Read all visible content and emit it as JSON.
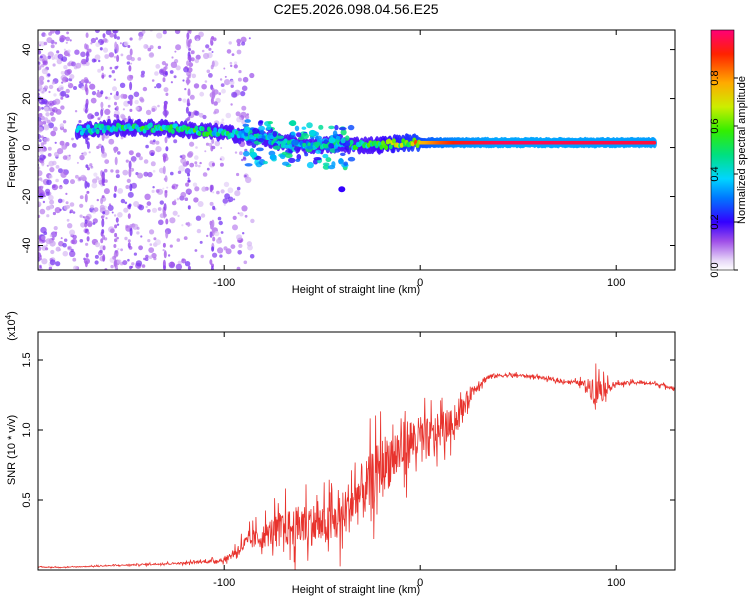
{
  "title": "C2E5.2026.098.04.56.E25",
  "chart_data": [
    {
      "type": "heatmap",
      "xlabel": "Height of straight line (km)",
      "ylabel": "Frequency (Hz)",
      "xlim": [
        -195,
        130
      ],
      "ylim": [
        -50,
        48
      ],
      "x_ticks": [
        -100,
        0,
        100
      ],
      "y_ticks": [
        -40,
        -20,
        0,
        20,
        40
      ],
      "colorbar": {
        "label": "Normalized spectral amplitude",
        "range": [
          0,
          1
        ],
        "ticks": [
          0.0,
          0.2,
          0.4,
          0.6,
          0.8
        ]
      },
      "track": [
        {
          "x": -175,
          "y": 7,
          "a": 0.35
        },
        {
          "x": -160,
          "y": 8,
          "a": 0.45
        },
        {
          "x": -145,
          "y": 8,
          "a": 0.5
        },
        {
          "x": -130,
          "y": 8,
          "a": 0.5
        },
        {
          "x": -115,
          "y": 7,
          "a": 0.5
        },
        {
          "x": -100,
          "y": 6,
          "a": 0.45
        },
        {
          "x": -90,
          "y": 5,
          "a": 0.45
        },
        {
          "x": -80,
          "y": 4,
          "a": 0.4
        },
        {
          "x": -70,
          "y": 2,
          "a": 0.4
        },
        {
          "x": -60,
          "y": 1,
          "a": 0.4
        },
        {
          "x": -50,
          "y": 1,
          "a": 0.45
        },
        {
          "x": -40,
          "y": 1,
          "a": 0.45
        },
        {
          "x": -30,
          "y": 1,
          "a": 0.5
        },
        {
          "x": -20,
          "y": 1,
          "a": 0.55
        },
        {
          "x": -10,
          "y": 2,
          "a": 0.65
        },
        {
          "x": 0,
          "y": 2,
          "a": 0.75
        },
        {
          "x": 10,
          "y": 2,
          "a": 0.85
        },
        {
          "x": 20,
          "y": 2,
          "a": 0.92
        },
        {
          "x": 40,
          "y": 2,
          "a": 0.97
        },
        {
          "x": 60,
          "y": 2,
          "a": 0.97
        },
        {
          "x": 80,
          "y": 2,
          "a": 0.96
        },
        {
          "x": 100,
          "y": 2,
          "a": 0.96
        },
        {
          "x": 120,
          "y": 2,
          "a": 0.95
        }
      ],
      "branch": [
        {
          "x": -85,
          "y": -3,
          "a": 0.4
        },
        {
          "x": -75,
          "y": -4,
          "a": 0.35
        },
        {
          "x": -65,
          "y": 10,
          "a": 0.45
        },
        {
          "x": -55,
          "y": 6,
          "a": 0.4
        },
        {
          "x": -45,
          "y": 3,
          "a": 0.4
        },
        {
          "x": -40,
          "y": -17,
          "a": 0.2
        }
      ]
    },
    {
      "type": "line",
      "xlabel": "Height of straight line (km)",
      "ylabel": "SNR (10 * v/v)",
      "scale_label": "(x10",
      "scale_exp": "4",
      "scale_close": ")",
      "xlim": [
        -195,
        130
      ],
      "ylim": [
        0,
        1.7
      ],
      "x_ticks": [
        -100,
        0,
        100
      ],
      "y_ticks": [
        0.5,
        1.0,
        1.5
      ],
      "y_tick_labels": [
        "0.5",
        "1.0",
        "1.5"
      ],
      "series": [
        {
          "name": "SNR",
          "color": "#e8332d",
          "x": [
            -195,
            -180,
            -160,
            -140,
            -120,
            -100,
            -95,
            -90,
            -85,
            -80,
            -75,
            -70,
            -65,
            -60,
            -55,
            -50,
            -45,
            -40,
            -35,
            -30,
            -25,
            -20,
            -15,
            -10,
            -5,
            0,
            5,
            10,
            15,
            20,
            25,
            30,
            35,
            40,
            50,
            60,
            70,
            80,
            85,
            88,
            90,
            92,
            95,
            100,
            110,
            120,
            130
          ],
          "values": [
            0.02,
            0.02,
            0.03,
            0.04,
            0.05,
            0.07,
            0.12,
            0.18,
            0.22,
            0.24,
            0.28,
            0.3,
            0.3,
            0.32,
            0.33,
            0.31,
            0.33,
            0.38,
            0.48,
            0.55,
            0.62,
            0.75,
            0.8,
            0.85,
            0.92,
            0.93,
            0.94,
            1.0,
            1.03,
            1.1,
            1.25,
            1.33,
            1.38,
            1.39,
            1.39,
            1.38,
            1.35,
            1.34,
            1.32,
            1.3,
            1.34,
            1.3,
            1.3,
            1.33,
            1.34,
            1.33,
            1.3
          ],
          "noise": [
            0.004,
            0.004,
            0.005,
            0.008,
            0.01,
            0.02,
            0.05,
            0.08,
            0.1,
            0.12,
            0.15,
            0.18,
            0.2,
            0.22,
            0.22,
            0.2,
            0.22,
            0.25,
            0.28,
            0.3,
            0.3,
            0.28,
            0.3,
            0.28,
            0.25,
            0.23,
            0.2,
            0.18,
            0.15,
            0.12,
            0.08,
            0.05,
            0.03,
            0.02,
            0.015,
            0.015,
            0.015,
            0.02,
            0.05,
            0.15,
            0.28,
            0.18,
            0.06,
            0.02,
            0.015,
            0.015,
            0.02
          ]
        }
      ]
    }
  ]
}
